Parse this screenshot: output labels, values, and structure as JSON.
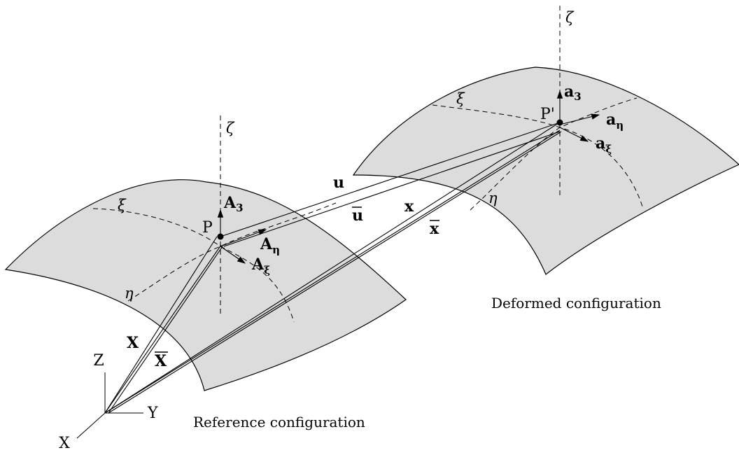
{
  "captions": {
    "reference": "Reference configuration",
    "deformed": "Deformed configuration"
  },
  "axes": {
    "x": "X",
    "y": "Y",
    "z": "Z"
  },
  "reference": {
    "point": "P",
    "zeta": "ζ",
    "xi": "ξ",
    "eta": "η",
    "A3": {
      "base": "A",
      "sub": "3"
    },
    "Aeta": {
      "base": "A",
      "sub": "η"
    },
    "Axi": {
      "base": "A",
      "sub": "ξ"
    }
  },
  "deformed": {
    "point": "P'",
    "zeta": "ζ",
    "xi": "ξ",
    "eta": "η",
    "a3": {
      "base": "a",
      "sub": "3"
    },
    "aeta": {
      "base": "a",
      "sub": "η"
    },
    "axi": {
      "base": "a",
      "sub": "ξ"
    }
  },
  "vectors": {
    "X": "X",
    "Xbar": "X",
    "x": "x",
    "xbar": "x",
    "u": "u",
    "ubar": "u"
  }
}
